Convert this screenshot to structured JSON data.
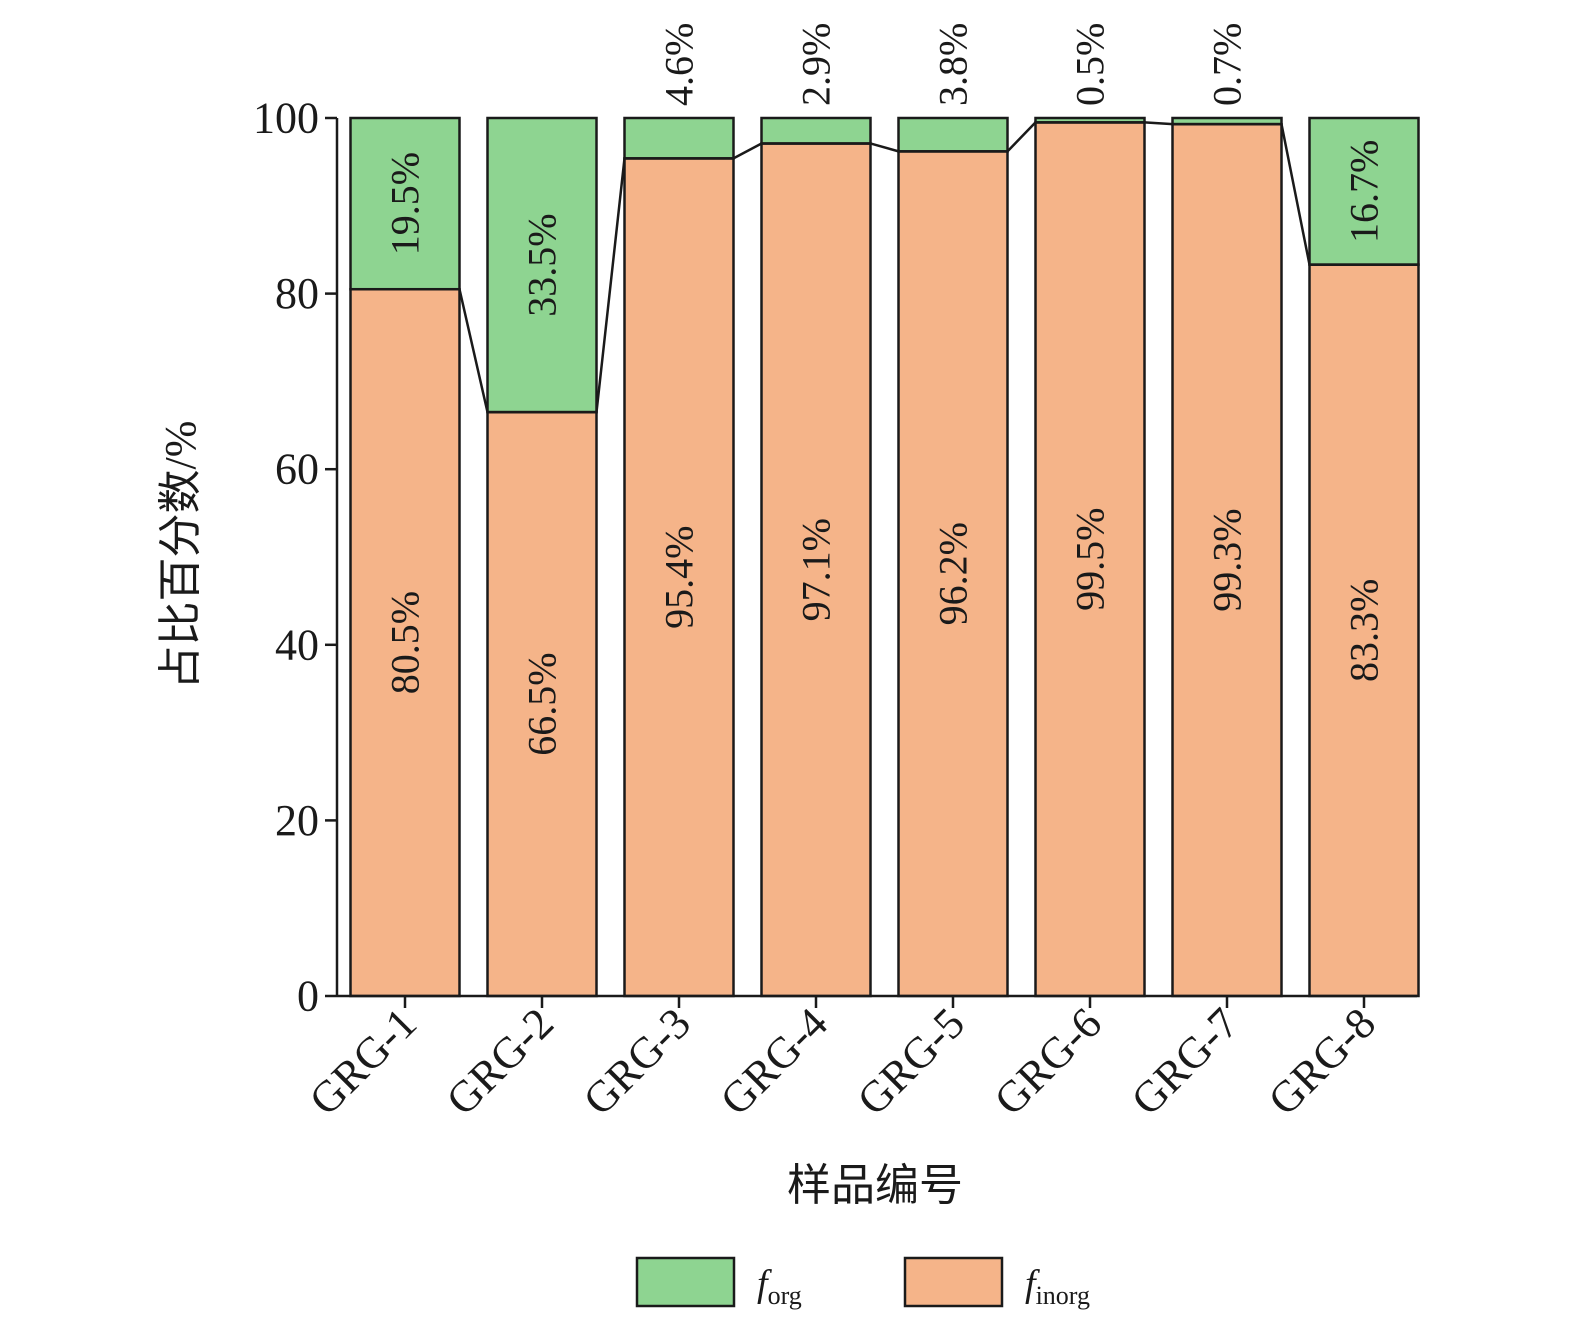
{
  "chart_data": {
    "type": "bar",
    "stacked": true,
    "categories": [
      "GRG-1",
      "GRG-2",
      "GRG-3",
      "GRG-4",
      "GRG-5",
      "GRG-6",
      "GRG-7",
      "GRG-8"
    ],
    "series": [
      {
        "name": "f_inorg",
        "legend_main": "f",
        "legend_sub": "inorg",
        "color": "#f5b489",
        "values": [
          80.5,
          66.5,
          95.4,
          97.1,
          96.2,
          99.5,
          99.3,
          83.3
        ],
        "labels": [
          "80.5%",
          "66.5%",
          "95.4%",
          "97.1%",
          "96.2%",
          "99.5%",
          "99.3%",
          "83.3%"
        ]
      },
      {
        "name": "f_org",
        "legend_main": "f",
        "legend_sub": "org",
        "color": "#8ed491",
        "values": [
          19.5,
          33.5,
          4.6,
          2.9,
          3.8,
          0.5,
          0.7,
          16.7
        ],
        "labels": [
          "19.5%",
          "33.5%",
          "4.6%",
          "2.9%",
          "3.8%",
          "0.5%",
          "0.7%",
          "16.7%"
        ]
      }
    ],
    "xlabel": "样品编号",
    "ylabel": "占比百分数/%",
    "ylim": [
      0,
      100
    ],
    "yticks": [
      0,
      20,
      40,
      60,
      80,
      100
    ],
    "grid": false,
    "legend": "bottom",
    "connector_line": true
  }
}
